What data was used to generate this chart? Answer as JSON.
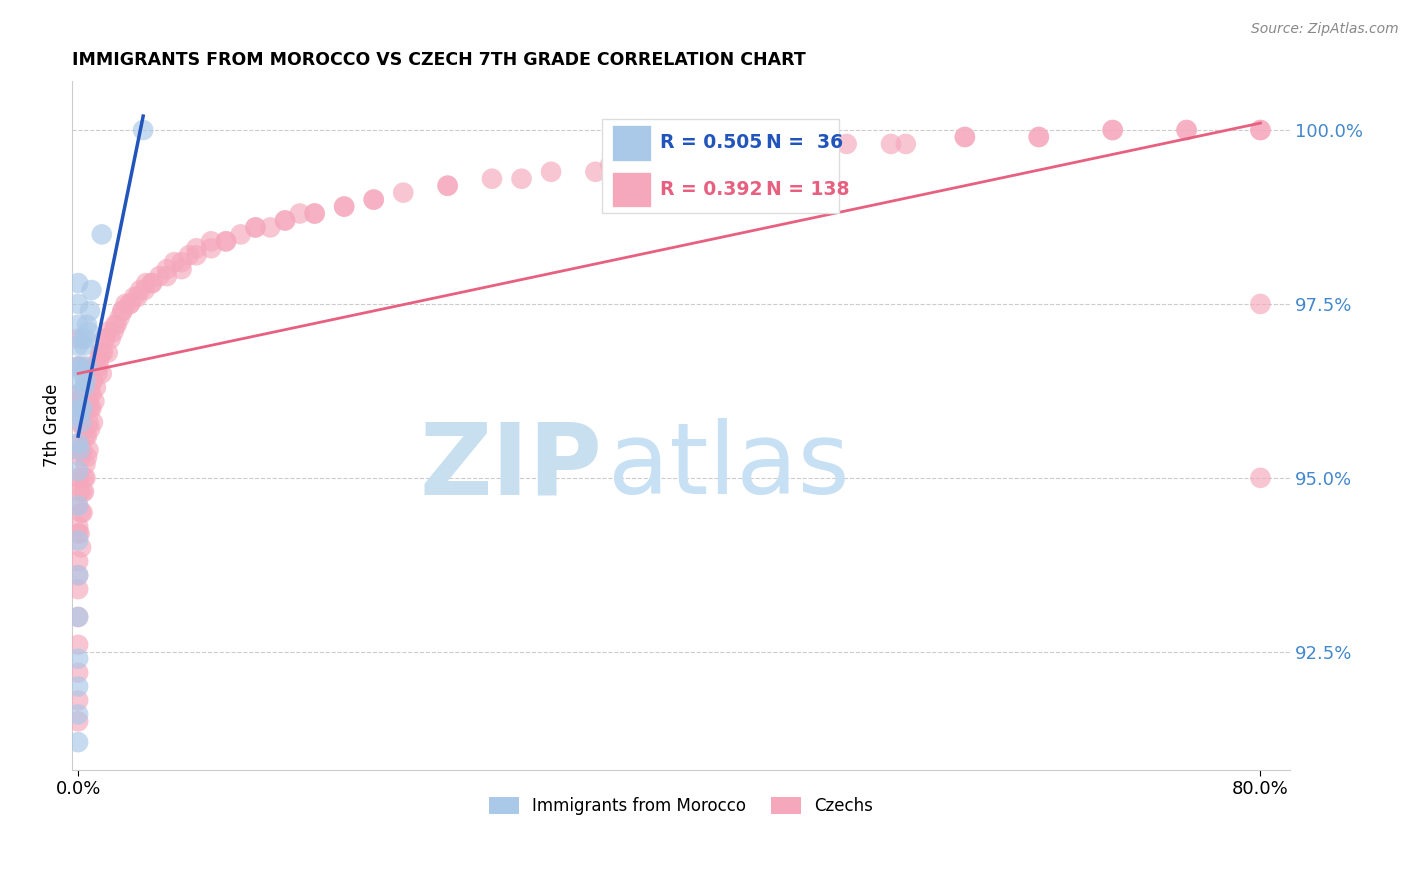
{
  "title": "IMMIGRANTS FROM MOROCCO VS CZECH 7TH GRADE CORRELATION CHART",
  "source": "Source: ZipAtlas.com",
  "ylabel": "7th Grade",
  "ytick_labels": [
    "100.0%",
    "97.5%",
    "95.0%",
    "92.5%"
  ],
  "ytick_values": [
    1.0,
    0.975,
    0.95,
    0.925
  ],
  "ymin": 0.908,
  "ymax": 1.007,
  "xmin": -0.004,
  "xmax": 0.82,
  "legend_r1": "R = 0.505",
  "legend_n1": "N =  36",
  "legend_r2": "R = 0.392",
  "legend_n2": "N = 138",
  "color_morocco": "#aac8e8",
  "color_czech": "#f5a8bc",
  "color_line_morocco": "#2255bb",
  "color_line_czech": "#e86080",
  "color_axis_right": "#4488cc",
  "morocco_x": [
    0.0,
    0.0,
    0.0,
    0.0,
    0.0,
    0.0,
    0.0,
    0.0,
    0.0,
    0.0,
    0.0,
    0.0,
    0.0,
    0.0,
    0.0,
    0.0,
    0.0,
    0.001,
    0.001,
    0.001,
    0.002,
    0.002,
    0.003,
    0.003,
    0.003,
    0.004,
    0.004,
    0.005,
    0.005,
    0.006,
    0.006,
    0.007,
    0.008,
    0.009,
    0.016,
    0.044
  ],
  "morocco_y": [
    0.912,
    0.916,
    0.92,
    0.924,
    0.93,
    0.936,
    0.941,
    0.946,
    0.951,
    0.955,
    0.959,
    0.962,
    0.966,
    0.969,
    0.972,
    0.975,
    0.978,
    0.954,
    0.96,
    0.966,
    0.958,
    0.964,
    0.96,
    0.965,
    0.97,
    0.963,
    0.969,
    0.964,
    0.97,
    0.966,
    0.972,
    0.971,
    0.974,
    0.977,
    0.985,
    1.0
  ],
  "czech_x": [
    0.0,
    0.0,
    0.0,
    0.0,
    0.0,
    0.0,
    0.0,
    0.0,
    0.0,
    0.0,
    0.0,
    0.0,
    0.0,
    0.0,
    0.0,
    0.001,
    0.001,
    0.001,
    0.002,
    0.002,
    0.002,
    0.003,
    0.003,
    0.003,
    0.003,
    0.004,
    0.004,
    0.005,
    0.005,
    0.005,
    0.006,
    0.006,
    0.007,
    0.007,
    0.008,
    0.008,
    0.009,
    0.01,
    0.01,
    0.011,
    0.012,
    0.013,
    0.014,
    0.015,
    0.016,
    0.017,
    0.018,
    0.02,
    0.022,
    0.024,
    0.026,
    0.028,
    0.03,
    0.032,
    0.035,
    0.038,
    0.042,
    0.046,
    0.05,
    0.055,
    0.06,
    0.065,
    0.07,
    0.075,
    0.08,
    0.09,
    0.1,
    0.11,
    0.12,
    0.13,
    0.14,
    0.15,
    0.16,
    0.18,
    0.2,
    0.22,
    0.25,
    0.28,
    0.32,
    0.36,
    0.4,
    0.44,
    0.48,
    0.52,
    0.56,
    0.6,
    0.65,
    0.7,
    0.75,
    0.8,
    0.0,
    0.0,
    0.001,
    0.001,
    0.002,
    0.003,
    0.004,
    0.005,
    0.006,
    0.007,
    0.008,
    0.009,
    0.01,
    0.012,
    0.014,
    0.016,
    0.018,
    0.02,
    0.025,
    0.03,
    0.035,
    0.04,
    0.045,
    0.05,
    0.06,
    0.07,
    0.08,
    0.09,
    0.1,
    0.12,
    0.14,
    0.16,
    0.18,
    0.2,
    0.25,
    0.3,
    0.35,
    0.4,
    0.45,
    0.5,
    0.55,
    0.6,
    0.65,
    0.7,
    0.75,
    0.8,
    0.8,
    0.8
  ],
  "czech_y": [
    0.915,
    0.918,
    0.922,
    0.926,
    0.93,
    0.934,
    0.938,
    0.942,
    0.946,
    0.95,
    0.954,
    0.958,
    0.962,
    0.966,
    0.97,
    0.948,
    0.955,
    0.962,
    0.945,
    0.953,
    0.961,
    0.948,
    0.954,
    0.96,
    0.966,
    0.95,
    0.957,
    0.95,
    0.956,
    0.963,
    0.953,
    0.96,
    0.954,
    0.961,
    0.957,
    0.963,
    0.96,
    0.958,
    0.964,
    0.961,
    0.963,
    0.965,
    0.966,
    0.968,
    0.965,
    0.968,
    0.97,
    0.968,
    0.97,
    0.971,
    0.972,
    0.973,
    0.974,
    0.975,
    0.975,
    0.976,
    0.977,
    0.978,
    0.978,
    0.979,
    0.98,
    0.981,
    0.981,
    0.982,
    0.983,
    0.984,
    0.984,
    0.985,
    0.986,
    0.986,
    0.987,
    0.988,
    0.988,
    0.989,
    0.99,
    0.991,
    0.992,
    0.993,
    0.994,
    0.995,
    0.996,
    0.997,
    0.997,
    0.998,
    0.998,
    0.999,
    0.999,
    1.0,
    1.0,
    1.0,
    0.936,
    0.943,
    0.942,
    0.95,
    0.94,
    0.945,
    0.948,
    0.952,
    0.956,
    0.958,
    0.96,
    0.962,
    0.964,
    0.966,
    0.967,
    0.968,
    0.97,
    0.971,
    0.972,
    0.974,
    0.975,
    0.976,
    0.977,
    0.978,
    0.979,
    0.98,
    0.982,
    0.983,
    0.984,
    0.986,
    0.987,
    0.988,
    0.989,
    0.99,
    0.992,
    0.993,
    0.994,
    0.995,
    0.996,
    0.997,
    0.998,
    0.999,
    0.999,
    1.0,
    1.0,
    1.0,
    0.975,
    0.95
  ]
}
